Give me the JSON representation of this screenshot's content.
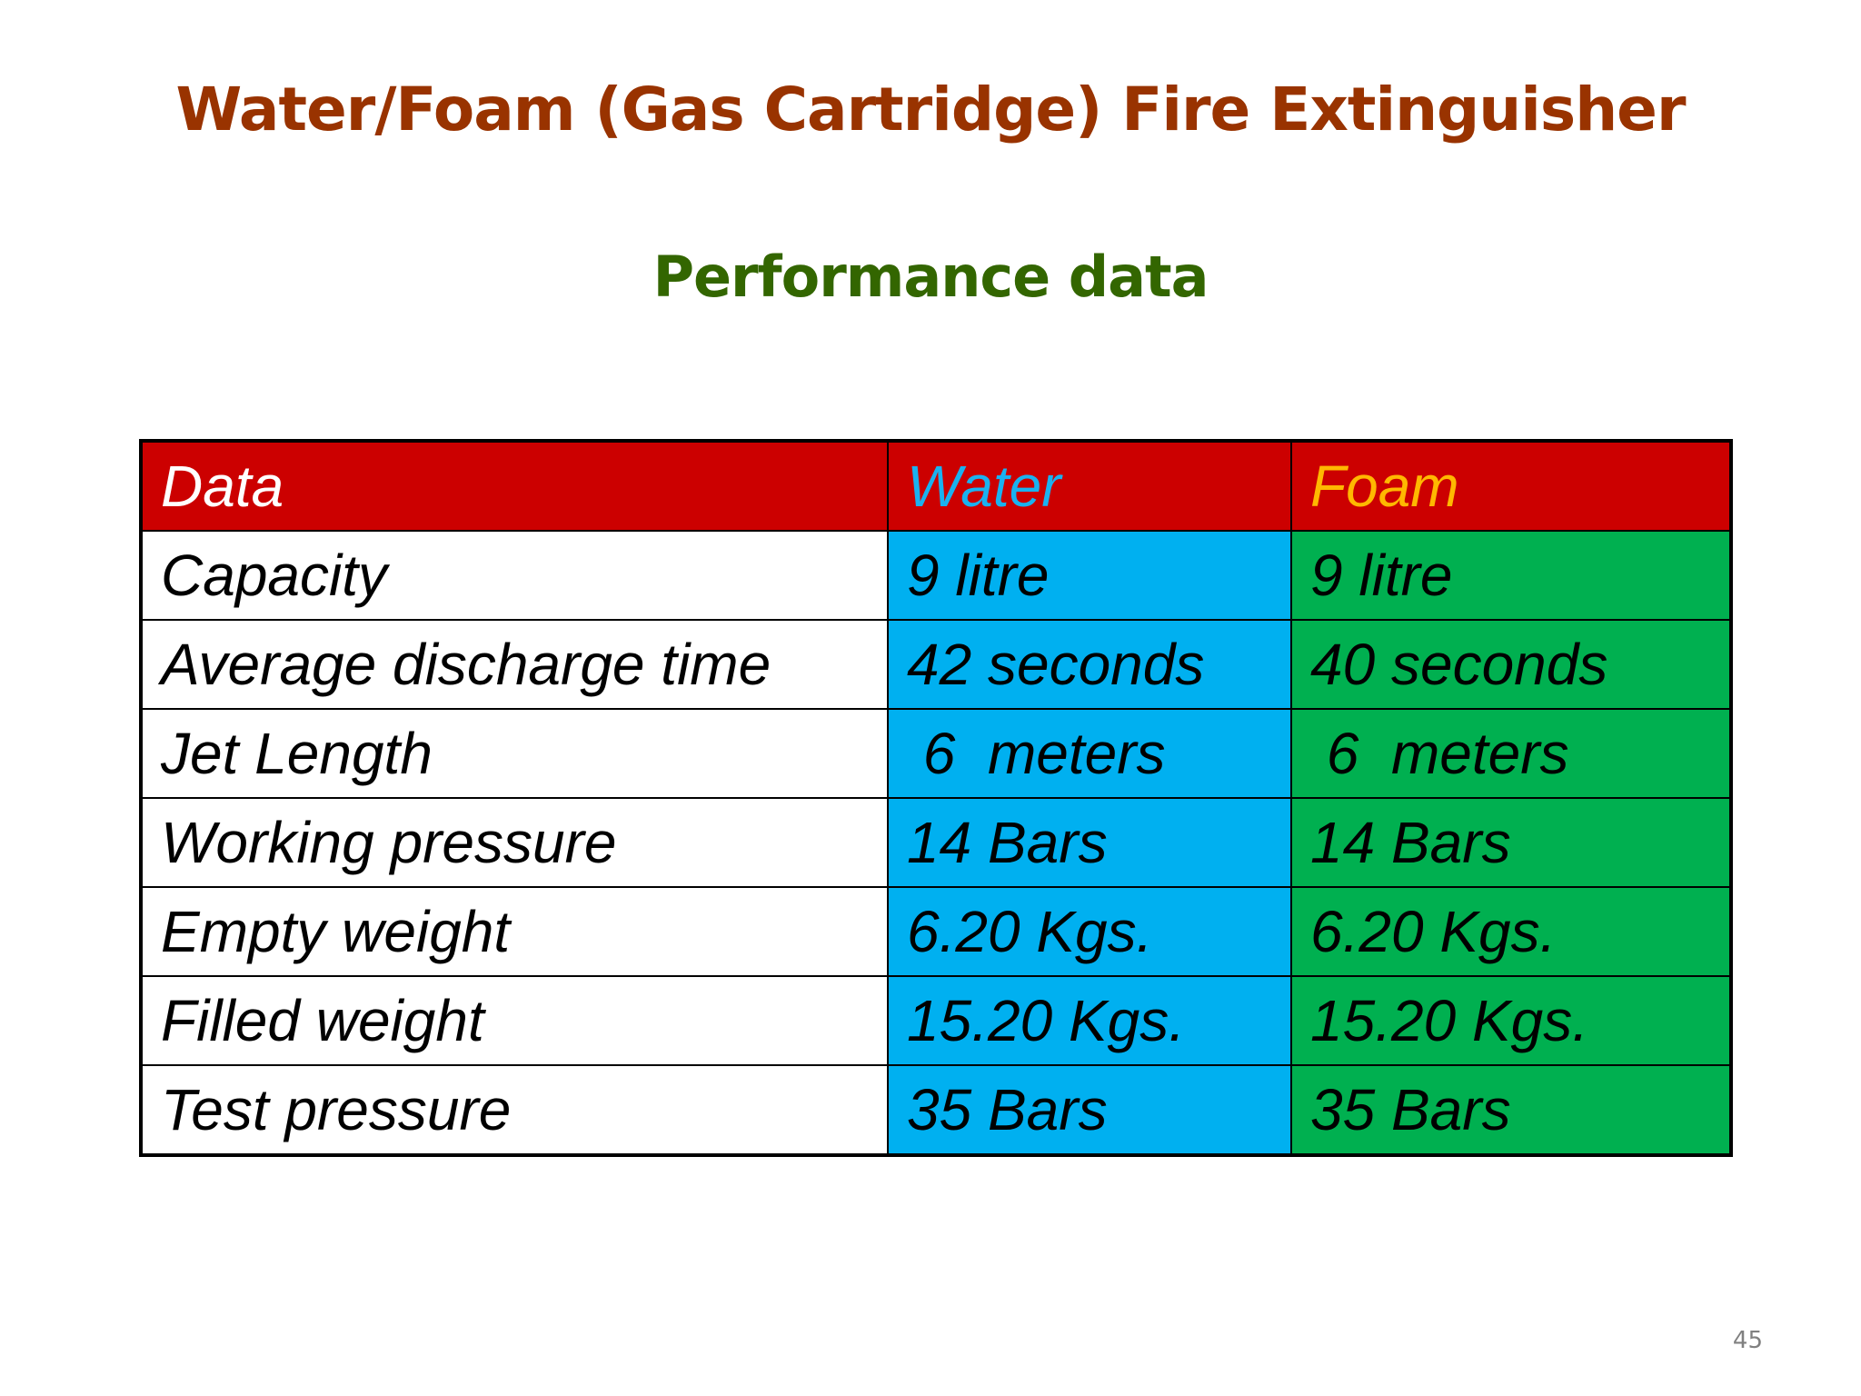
{
  "slide": {
    "title": "Water/Foam (Gas Cartridge) Fire Extinguisher",
    "subtitle": "Performance data",
    "page_number": "45"
  },
  "table": {
    "headers": [
      "Data",
      "Water",
      "Foam"
    ],
    "rows": [
      {
        "label": "Capacity",
        "water": "9 litre",
        "foam": "9 litre"
      },
      {
        "label": "Average discharge time",
        "water": "42 seconds",
        "foam": "40 seconds"
      },
      {
        "label": "Jet Length",
        "water": " 6  meters",
        "foam": " 6  meters"
      },
      {
        "label": "Working pressure",
        "water": "14 Bars",
        "foam": "14 Bars"
      },
      {
        "label": "Empty weight",
        "water": "6.20 Kgs.",
        "foam": "6.20 Kgs."
      },
      {
        "label": "Filled weight",
        "water": "15.20 Kgs.",
        "foam": "15.20 Kgs."
      },
      {
        "label": "Test pressure",
        "water": "35 Bars",
        "foam": "35 Bars"
      }
    ]
  },
  "colors": {
    "title": "#993300",
    "subtitle": "#336600",
    "header_bg": "#cc0000",
    "header_data_text": "#ffffff",
    "header_water_text": "#1ab2f0",
    "header_foam_text": "#ffb800",
    "water_bg": "#00b0f0",
    "foam_bg": "#00b050"
  }
}
